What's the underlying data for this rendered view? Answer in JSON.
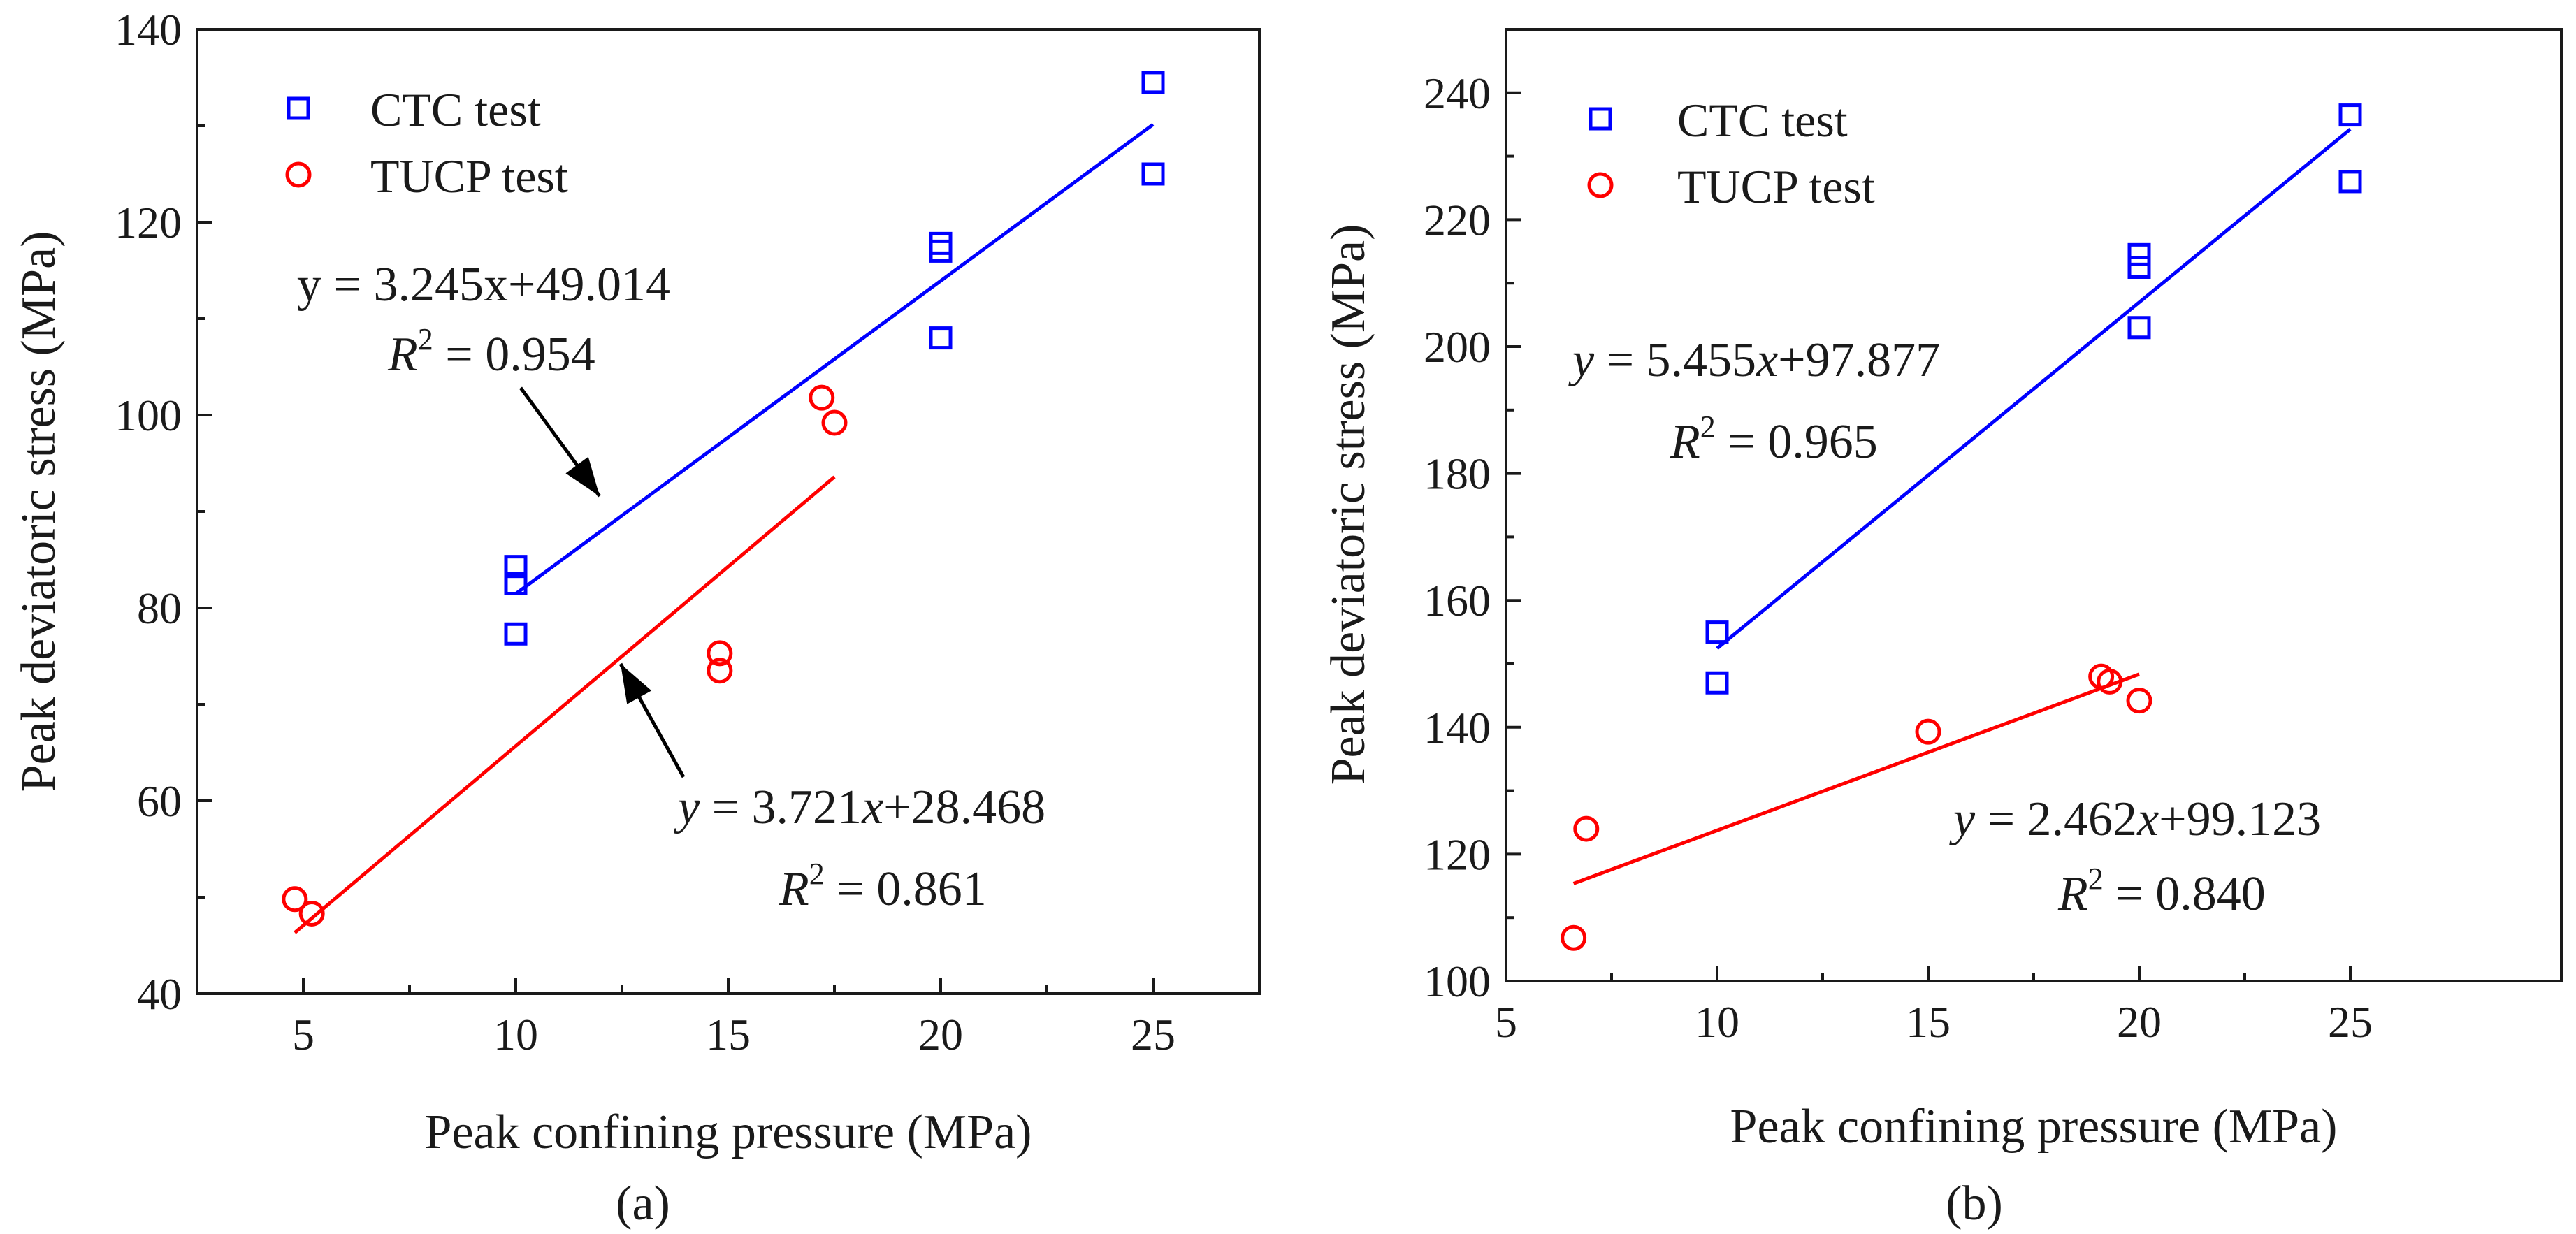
{
  "chart_data": [
    {
      "type": "scatter",
      "panel_label": "(a)",
      "xlabel": "Peak confining pressure (MPa)",
      "ylabel": "Peak deviatoric stress (MPa)",
      "xlim": [
        2.5,
        27.5
      ],
      "ylim": [
        40,
        140
      ],
      "xticks": [
        5,
        10,
        15,
        20,
        25
      ],
      "yticks": [
        40,
        60,
        80,
        100,
        120,
        140
      ],
      "legend_position": "top-left",
      "series": [
        {
          "name": "CTC test",
          "marker": "square",
          "color": "#0000ff",
          "points": [
            [
              10,
              84.3
            ],
            [
              10,
              82.5
            ],
            [
              10,
              77.3
            ],
            [
              20,
              117.8
            ],
            [
              20,
              117.0
            ],
            [
              20,
              108.0
            ],
            [
              25,
              134.5
            ],
            [
              25,
              125.0
            ]
          ],
          "fit": {
            "slope": 3.245,
            "intercept": 49.014,
            "x_range": [
              10,
              25
            ]
          },
          "equation": {
            "y": "y",
            "rest": " = 3.245x+49.014",
            "italic": false
          },
          "r2_value": " = 0.954"
        },
        {
          "name": "TUCP test",
          "marker": "circle",
          "color": "#ff0000",
          "points": [
            [
              4.8,
              49.8
            ],
            [
              5.2,
              48.3
            ],
            [
              14.8,
              75.3
            ],
            [
              14.8,
              73.5
            ],
            [
              17.2,
              101.8
            ],
            [
              17.5,
              99.2
            ]
          ],
          "fit": {
            "slope": 3.721,
            "intercept": 28.468,
            "x_range": [
              4.8,
              17.5
            ]
          },
          "equation": {
            "y": "y",
            "rest": " = 3.721",
            "x": "x",
            "tail": "+28.468",
            "italic": true
          },
          "r2_value": " = 0.861"
        }
      ]
    },
    {
      "type": "scatter",
      "panel_label": "(b)",
      "xlabel": "Peak confining pressure (MPa)",
      "ylabel": "Peak deviatoric stress (MPa)",
      "xlim": [
        5,
        30
      ],
      "ylim": [
        100,
        250
      ],
      "xticks": [
        5,
        10,
        15,
        20,
        25
      ],
      "yticks": [
        100,
        120,
        140,
        160,
        180,
        200,
        220,
        240
      ],
      "legend_position": "top-left",
      "series": [
        {
          "name": "CTC test",
          "marker": "square",
          "color": "#0000ff",
          "points": [
            [
              10,
              155.0
            ],
            [
              10,
              147.0
            ],
            [
              20,
              214.5
            ],
            [
              20,
              212.5
            ],
            [
              20,
              203.0
            ],
            [
              25,
              236.5
            ],
            [
              25,
              226.0
            ]
          ],
          "fit": {
            "slope": 5.455,
            "intercept": 97.877,
            "x_range": [
              10,
              25
            ]
          },
          "equation": {
            "y": "y",
            "rest": " = 5.455",
            "x": "x",
            "tail": "+97.877",
            "italic": true
          },
          "r2_value": " = 0.965"
        },
        {
          "name": "TUCP test",
          "marker": "circle",
          "color": "#ff0000",
          "points": [
            [
              6.6,
              106.8
            ],
            [
              6.9,
              124.0
            ],
            [
              15,
              139.3
            ],
            [
              19.1,
              148.0
            ],
            [
              19.3,
              147.2
            ],
            [
              20,
              144.2
            ]
          ],
          "fit": {
            "slope": 2.462,
            "intercept": 99.123,
            "x_range": [
              6.6,
              20
            ]
          },
          "equation": {
            "y": "y",
            "rest": " = 2.462",
            "x": "x",
            "tail": "+99.123",
            "italic": true
          },
          "r2_value": " = 0.840"
        }
      ]
    }
  ],
  "common": {
    "r2_symbol": "R",
    "r2_exponent": "2"
  }
}
